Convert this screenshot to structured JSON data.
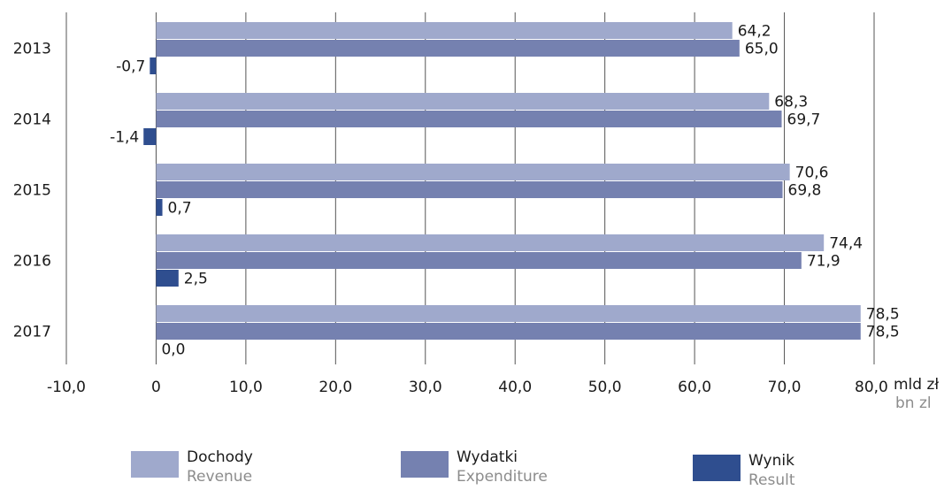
{
  "chart_data": {
    "type": "bar",
    "orientation": "horizontal",
    "categories": [
      "2013",
      "2014",
      "2015",
      "2016",
      "2017"
    ],
    "series": [
      {
        "name": "Dochody",
        "name_en": "Revenue",
        "color": "#9fa9cc",
        "values": [
          64.2,
          68.3,
          70.6,
          74.4,
          78.5
        ],
        "labels": [
          "64,2",
          "68,3",
          "70,6",
          "74,4",
          "78,5"
        ]
      },
      {
        "name": "Wydatki",
        "name_en": "Expenditure",
        "color": "#7581b0",
        "values": [
          65.0,
          69.7,
          69.8,
          71.9,
          78.5
        ],
        "labels": [
          "65,0",
          "69,7",
          "69,8",
          "71,9",
          "78,5"
        ]
      },
      {
        "name": "Wynik",
        "name_en": "Result",
        "color": "#2f4e8f",
        "values": [
          -0.7,
          -1.4,
          0.7,
          2.5,
          0.0
        ],
        "labels": [
          "-0,7",
          "-1,4",
          "0,7",
          "2,5",
          "0,0"
        ]
      }
    ],
    "xlim": [
      -10,
      80
    ],
    "xticks": [
      -10,
      0,
      10,
      20,
      30,
      40,
      50,
      60,
      70,
      80
    ],
    "xtick_labels": [
      "-10,0",
      "0",
      "10,0",
      "20,0",
      "30,0",
      "40,0",
      "50,0",
      "60,0",
      "70,0",
      "80,0"
    ],
    "xlabel": "mld zł",
    "xlabel_en": "bn zl",
    "grid": true,
    "legend_position": "bottom",
    "gridline_color": "#555555",
    "tick_label_color": "#1a1a1a"
  }
}
